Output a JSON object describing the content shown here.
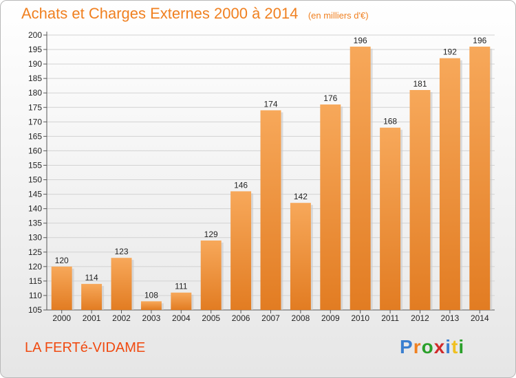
{
  "header": {
    "title": "Achats et Charges Externes 2000 à 2014",
    "unit": "(en milliers d'€)"
  },
  "footer": {
    "commune": "LA FERTé-VIDAME",
    "logo_text": "Proxiti",
    "logo_colors": [
      "#3a7fd0",
      "#f08020",
      "#2aa02a",
      "#d02a2a",
      "#3a7fd0",
      "#f0c020",
      "#2aa02a"
    ]
  },
  "colors": {
    "bar_top": "#f7a85a",
    "bar_bottom": "#e27c22",
    "grid": "#d2d2d2",
    "title": "#f08020",
    "commune": "#f04a10"
  },
  "chart_data": {
    "type": "bar",
    "categories": [
      "2000",
      "2001",
      "2002",
      "2003",
      "2004",
      "2005",
      "2006",
      "2007",
      "2008",
      "2009",
      "2010",
      "2011",
      "2012",
      "2013",
      "2014"
    ],
    "values": [
      120,
      114,
      123,
      108,
      111,
      129,
      146,
      174,
      142,
      176,
      196,
      168,
      181,
      192,
      196
    ],
    "title": "Achats et Charges Externes 2000 à 2014",
    "subtitle": "(en milliers d'€)",
    "xlabel": "",
    "ylabel": "",
    "ylim": [
      105,
      200
    ],
    "ytick_step": 5,
    "grid": true,
    "legend": "none"
  }
}
